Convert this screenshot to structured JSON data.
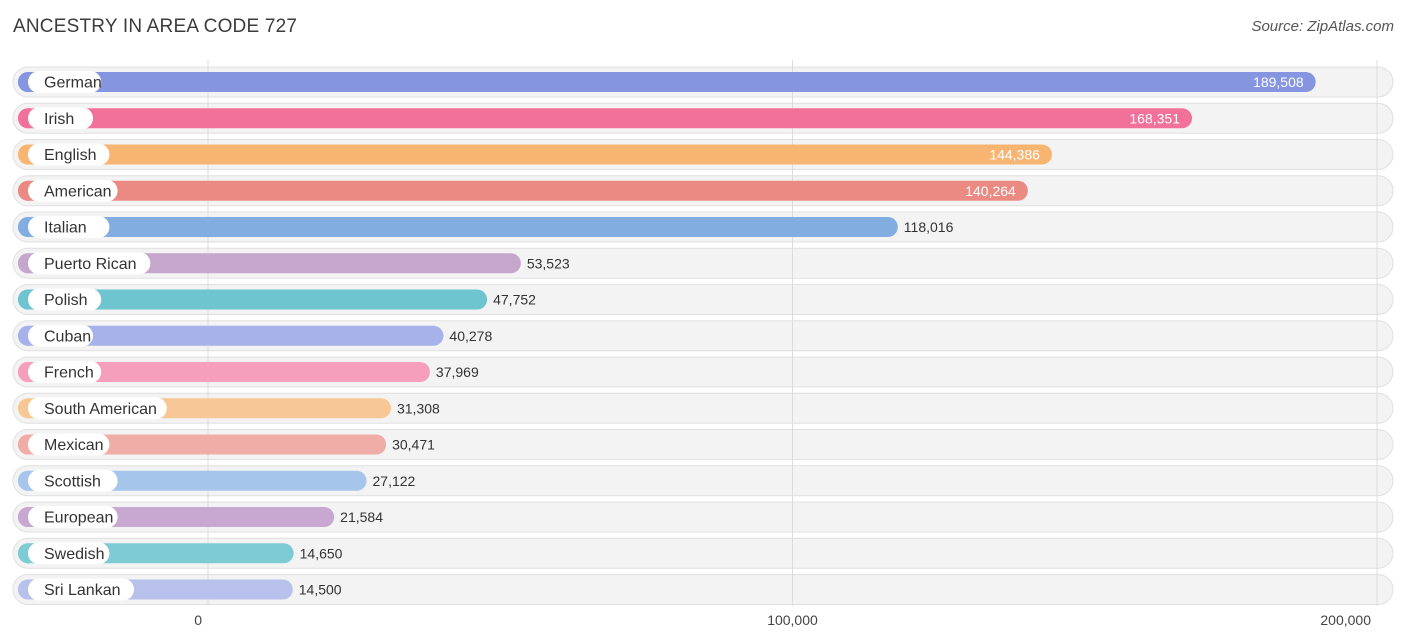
{
  "title": "ANCESTRY IN AREA CODE 727",
  "source": "Source: ZipAtlas.com",
  "chart_data": {
    "type": "bar",
    "orientation": "horizontal",
    "title": "ANCESTRY IN AREA CODE 727",
    "xlabel": "",
    "ylabel": "",
    "xlim": [
      0,
      200000
    ],
    "ticks": [
      {
        "value": 0,
        "label": "0"
      },
      {
        "value": 100000,
        "label": "100,000"
      },
      {
        "value": 200000,
        "label": "200,000"
      }
    ],
    "categories": [
      "German",
      "Irish",
      "English",
      "American",
      "Italian",
      "Puerto Rican",
      "Polish",
      "Cuban",
      "French",
      "South American",
      "Mexican",
      "Scottish",
      "European",
      "Swedish",
      "Sri Lankan"
    ],
    "values": [
      189508,
      168351,
      144386,
      140264,
      118016,
      53523,
      47752,
      40278,
      37969,
      31308,
      30471,
      27122,
      21584,
      14650,
      14500
    ],
    "value_labels": [
      "189,508",
      "168,351",
      "144,386",
      "140,264",
      "118,016",
      "53,523",
      "47,752",
      "40,278",
      "37,969",
      "31,308",
      "30,471",
      "27,122",
      "21,584",
      "14,650",
      "14,500"
    ],
    "colors": [
      "#8595e0",
      "#f2719b",
      "#f8b572",
      "#ea8a82",
      "#82ade0",
      "#c5a6cd",
      "#6ec4cf",
      "#a8b2ea",
      "#f59fbc",
      "#f8c796",
      "#f0aca6",
      "#a5c5ea",
      "#c8a8d0",
      "#7fcbd4",
      "#b8c0ec"
    ]
  }
}
